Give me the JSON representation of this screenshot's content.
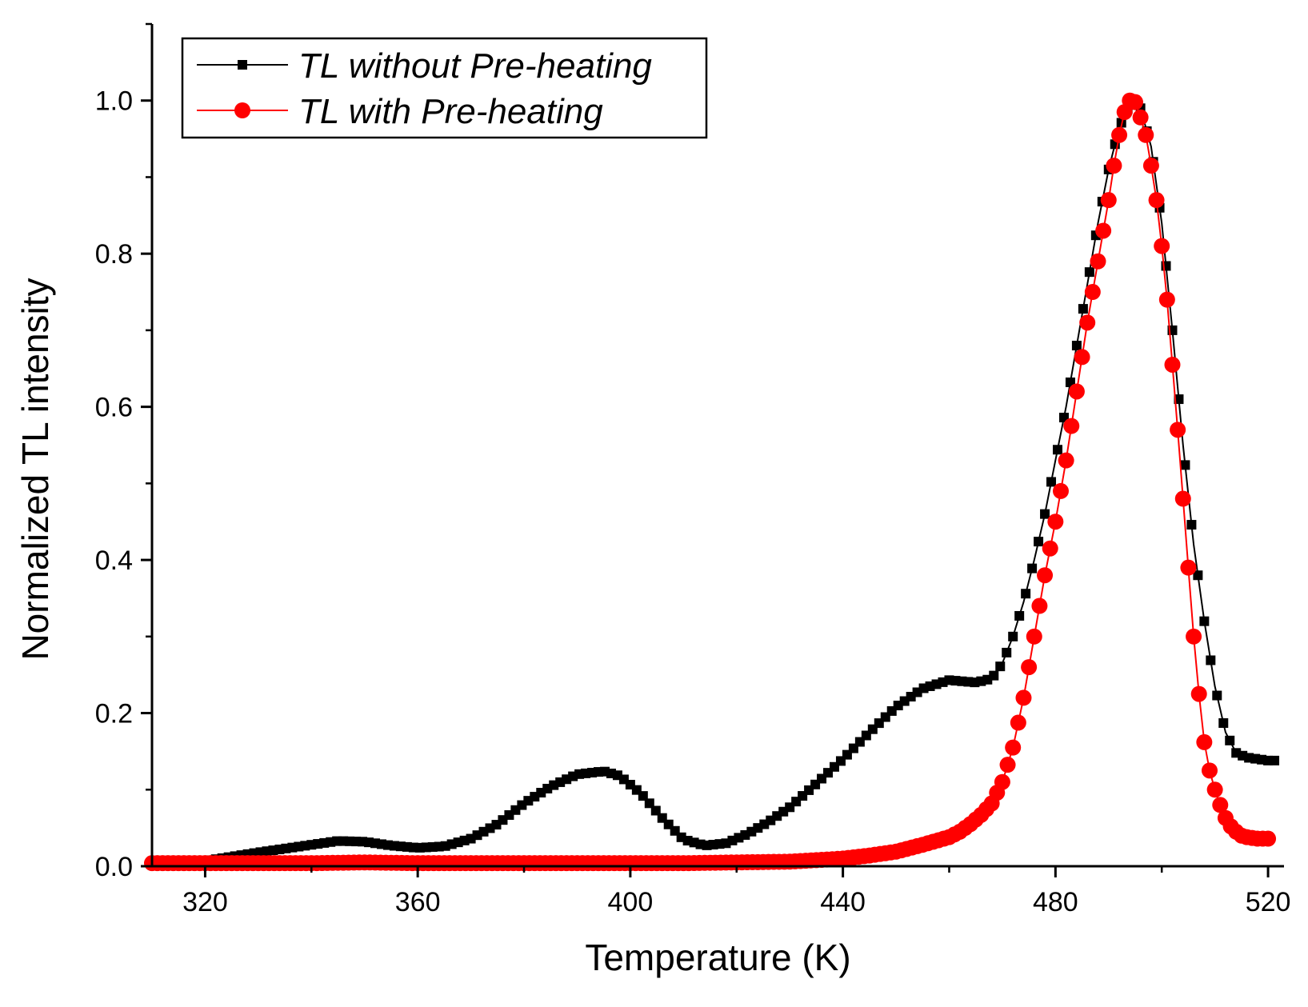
{
  "chart_data": {
    "type": "scatter",
    "xlabel": "Temperature (K)",
    "ylabel": "Normalized TL intensity",
    "xlim": [
      310,
      523
    ],
    "ylim": [
      0,
      1.1
    ],
    "x_ticks": [
      320,
      360,
      400,
      440,
      480,
      520
    ],
    "y_ticks": [
      0.0,
      0.2,
      0.4,
      0.6,
      0.8,
      1.0
    ],
    "x_tick_labels": [
      "320",
      "360",
      "400",
      "440",
      "480",
      "520"
    ],
    "y_tick_labels": [
      "0.0",
      "0.2",
      "0.4",
      "0.6",
      "0.8",
      "1.0"
    ],
    "grid": false,
    "legend_position": "top-left",
    "series": [
      {
        "name": "TL without Pre-heating",
        "color": "#000000",
        "marker": "square",
        "x": [
          310,
          320,
          330,
          340,
          345,
          350,
          355,
          360,
          365,
          370,
          375,
          380,
          385,
          390,
          395,
          398,
          402,
          406,
          410,
          414,
          418,
          422,
          426,
          430,
          435,
          440,
          445,
          450,
          455,
          460,
          465,
          468,
          470,
          472,
          474,
          476,
          478,
          480,
          482,
          484,
          486,
          488,
          490,
          492,
          494,
          495,
          496,
          498,
          500,
          502,
          504,
          506,
          508,
          510,
          512,
          514,
          516,
          518,
          520,
          522
        ],
        "y": [
          0.004,
          0.007,
          0.018,
          0.028,
          0.033,
          0.032,
          0.027,
          0.024,
          0.026,
          0.036,
          0.055,
          0.082,
          0.104,
          0.12,
          0.124,
          0.118,
          0.095,
          0.063,
          0.035,
          0.027,
          0.03,
          0.042,
          0.058,
          0.077,
          0.108,
          0.14,
          0.175,
          0.208,
          0.232,
          0.243,
          0.24,
          0.245,
          0.265,
          0.3,
          0.345,
          0.4,
          0.46,
          0.53,
          0.6,
          0.68,
          0.76,
          0.84,
          0.91,
          0.965,
          0.995,
          1.0,
          0.99,
          0.94,
          0.84,
          0.7,
          0.55,
          0.42,
          0.32,
          0.235,
          0.175,
          0.148,
          0.142,
          0.14,
          0.138,
          0.138
        ]
      },
      {
        "name": "TL with Pre-heating",
        "color": "#ff0000",
        "marker": "circle",
        "x": [
          310,
          320,
          330,
          340,
          350,
          360,
          370,
          380,
          390,
          400,
          410,
          420,
          430,
          440,
          445,
          450,
          455,
          460,
          462,
          464,
          466,
          468,
          470,
          472,
          474,
          476,
          478,
          480,
          482,
          484,
          486,
          488,
          490,
          491,
          492,
          493,
          494,
          495,
          496,
          497,
          498,
          499,
          500,
          501,
          502,
          503,
          504,
          505,
          506,
          507,
          508,
          509,
          510,
          511,
          512,
          513,
          514,
          515,
          516,
          517,
          518,
          519,
          520
        ],
        "y": [
          0.004,
          0.004,
          0.004,
          0.004,
          0.005,
          0.004,
          0.004,
          0.004,
          0.004,
          0.004,
          0.004,
          0.005,
          0.006,
          0.01,
          0.014,
          0.019,
          0.028,
          0.038,
          0.045,
          0.055,
          0.067,
          0.082,
          0.11,
          0.155,
          0.22,
          0.3,
          0.38,
          0.45,
          0.53,
          0.62,
          0.71,
          0.79,
          0.87,
          0.915,
          0.955,
          0.985,
          1.0,
          0.998,
          0.978,
          0.955,
          0.915,
          0.87,
          0.81,
          0.74,
          0.655,
          0.57,
          0.48,
          0.39,
          0.3,
          0.225,
          0.162,
          0.125,
          0.1,
          0.08,
          0.063,
          0.052,
          0.045,
          0.04,
          0.038,
          0.037,
          0.036,
          0.036,
          0.036
        ]
      }
    ]
  }
}
